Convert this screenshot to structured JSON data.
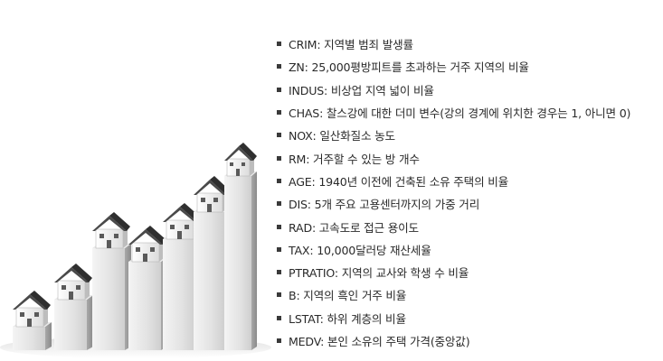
{
  "illustration": {
    "icon": "bar-chart-houses-icon",
    "bar_heights_relative": [
      0.26,
      0.37,
      0.54,
      0.45,
      0.54,
      0.6,
      0.81
    ]
  },
  "variables": [
    "CRIM: 지역별 범죄 발생률",
    "ZN: 25,000평방피트를 초과하는 거주 지역의 비율",
    "INDUS: 비상업 지역 넓이 비율",
    "CHAS: 찰스강에 대한 더미 변수(강의 경계에 위치한 경우는 1, 아니면 0)",
    "NOX: 일산화질소 농도",
    "RM: 거주할 수 있는 방 개수",
    "AGE: 1940년 이전에 건축된 소유 주택의 비율",
    "DIS: 5개 주요 고용센터까지의 가중 거리",
    "RAD: 고속도로 접근 용이도",
    "TAX: 10,000달러당 재산세율",
    "PTRATIO: 지역의 교사와 학생 수 비율",
    "B: 지역의 흑인 거주 비율",
    "LSTAT: 하위 계층의 비율",
    "MEDV: 본인 소유의 주택 가격(중앙값)"
  ]
}
